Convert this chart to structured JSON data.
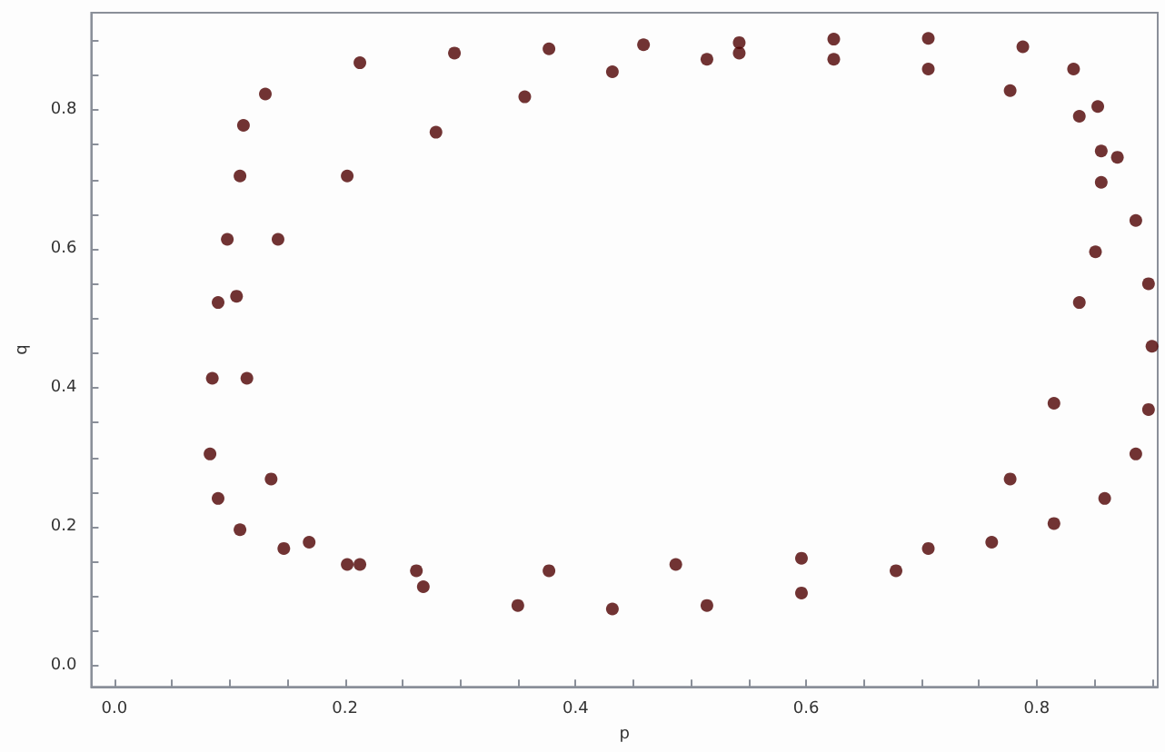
{
  "chart_data": {
    "type": "scatter",
    "xlabel": "p",
    "ylabel": "q",
    "marker": "circle",
    "grid": false,
    "xlim": [
      -0.02,
      0.905
    ],
    "ylim": [
      -0.03,
      0.94
    ],
    "xticks": [
      {
        "value": 0,
        "label": "0.0"
      },
      {
        "value": 0.05,
        "label": null
      },
      {
        "value": 0.1,
        "label": null
      },
      {
        "value": 0.15,
        "label": null
      },
      {
        "value": 0.2,
        "label": "0.2"
      },
      {
        "value": 0.25,
        "label": null
      },
      {
        "value": 0.3,
        "label": null
      },
      {
        "value": 0.35,
        "label": null
      },
      {
        "value": 0.4,
        "label": "0.4"
      },
      {
        "value": 0.45,
        "label": null
      },
      {
        "value": 0.5,
        "label": null
      },
      {
        "value": 0.55,
        "label": null
      },
      {
        "value": 0.6,
        "label": "0.6"
      },
      {
        "value": 0.65,
        "label": null
      },
      {
        "value": 0.7,
        "label": null
      },
      {
        "value": 0.75,
        "label": null
      },
      {
        "value": 0.8,
        "label": "0.8"
      },
      {
        "value": 0.85,
        "label": null
      },
      {
        "value": 0.9,
        "label": null
      }
    ],
    "yticks": [
      {
        "value": 0,
        "label": "0.0"
      },
      {
        "value": 0.05,
        "label": null
      },
      {
        "value": 0.1,
        "label": null
      },
      {
        "value": 0.15,
        "label": null
      },
      {
        "value": 0.2,
        "label": "0.2"
      },
      {
        "value": 0.25,
        "label": null
      },
      {
        "value": 0.3,
        "label": null
      },
      {
        "value": 0.35,
        "label": null
      },
      {
        "value": 0.4,
        "label": "0.4"
      },
      {
        "value": 0.45,
        "label": null
      },
      {
        "value": 0.5,
        "label": null
      },
      {
        "value": 0.55,
        "label": null
      },
      {
        "value": 0.6,
        "label": "0.6"
      },
      {
        "value": 0.65,
        "label": null
      },
      {
        "value": 0.7,
        "label": null
      },
      {
        "value": 0.75,
        "label": null
      },
      {
        "value": 0.8,
        "label": "0.8"
      },
      {
        "value": 0.85,
        "label": null
      },
      {
        "value": 0.9,
        "label": null
      }
    ],
    "series": [
      {
        "color": "#4d0000",
        "x": [
          0.131,
          0.213,
          0.295,
          0.377,
          0.459,
          0.542,
          0.624,
          0.706,
          0.788,
          0.832,
          0.853,
          0.87,
          0.886,
          0.897,
          0.9,
          0.897,
          0.886,
          0.859,
          0.815,
          0.761,
          0.678,
          0.596,
          0.514,
          0.432,
          0.35,
          0.268,
          0.202,
          0.147,
          0.109,
          0.09,
          0.083,
          0.085,
          0.09,
          0.098,
          0.109,
          0.112,
          0.142,
          0.202,
          0.279,
          0.356,
          0.432,
          0.514,
          0.542,
          0.624,
          0.706,
          0.777,
          0.837,
          0.856,
          0.856,
          0.851,
          0.837,
          0.815,
          0.777,
          0.706,
          0.596,
          0.487,
          0.377,
          0.262,
          0.213,
          0.169,
          0.136,
          0.115,
          0.106
        ],
        "values": [
          0.823,
          0.868,
          0.882,
          0.888,
          0.894,
          0.897,
          0.902,
          0.903,
          0.891,
          0.859,
          0.805,
          0.732,
          0.641,
          0.55,
          0.46,
          0.369,
          0.305,
          0.241,
          0.205,
          0.178,
          0.137,
          0.105,
          0.087,
          0.082,
          0.087,
          0.114,
          0.146,
          0.169,
          0.196,
          0.241,
          0.305,
          0.414,
          0.523,
          0.614,
          0.705,
          0.778,
          0.614,
          0.705,
          0.768,
          0.819,
          0.855,
          0.873,
          0.882,
          0.873,
          0.859,
          0.828,
          0.791,
          0.741,
          0.696,
          0.596,
          0.523,
          0.378,
          0.269,
          0.169,
          0.155,
          0.146,
          0.137,
          0.137,
          0.146,
          0.178,
          0.269,
          0.414,
          0.532
        ]
      }
    ]
  }
}
